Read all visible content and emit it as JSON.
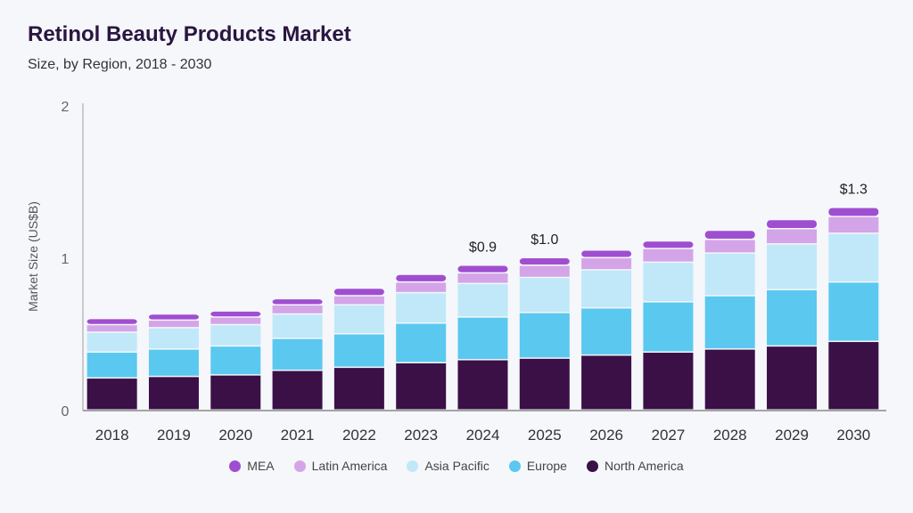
{
  "header": {
    "title": "Retinol Beauty Products Market",
    "subtitle": "Size, by Region, 2018 - 2030"
  },
  "chart_data": {
    "type": "bar",
    "stacked": true,
    "title": "Retinol Beauty Products Market",
    "subtitle": "Size, by Region, 2018 - 2030",
    "xlabel": "",
    "ylabel": "Market Size (US$B)",
    "ylim": [
      0,
      2
    ],
    "yticks": [
      "0",
      "1",
      "2"
    ],
    "grid": false,
    "legend_position": "bottom",
    "categories": [
      "2018",
      "2019",
      "2020",
      "2021",
      "2022",
      "2023",
      "2024",
      "2025",
      "2026",
      "2027",
      "2028",
      "2029",
      "2030"
    ],
    "series": [
      {
        "name": "North America",
        "color": "#3a1047",
        "values": [
          0.21,
          0.22,
          0.23,
          0.26,
          0.28,
          0.31,
          0.33,
          0.34,
          0.36,
          0.38,
          0.4,
          0.42,
          0.45
        ]
      },
      {
        "name": "Europe",
        "color": "#5bc8f0",
        "values": [
          0.17,
          0.18,
          0.19,
          0.21,
          0.22,
          0.26,
          0.28,
          0.3,
          0.31,
          0.33,
          0.35,
          0.37,
          0.39
        ]
      },
      {
        "name": "Asia Pacific",
        "color": "#c0e8f8",
        "values": [
          0.13,
          0.14,
          0.14,
          0.16,
          0.19,
          0.2,
          0.22,
          0.23,
          0.25,
          0.26,
          0.28,
          0.3,
          0.32
        ]
      },
      {
        "name": "Latin America",
        "color": "#d4a4e8",
        "values": [
          0.05,
          0.05,
          0.05,
          0.06,
          0.06,
          0.07,
          0.07,
          0.08,
          0.08,
          0.09,
          0.09,
          0.1,
          0.11
        ]
      },
      {
        "name": "MEA",
        "color": "#a04ed0",
        "values": [
          0.04,
          0.04,
          0.04,
          0.04,
          0.05,
          0.05,
          0.05,
          0.05,
          0.05,
          0.05,
          0.06,
          0.06,
          0.06
        ]
      }
    ],
    "annotations": [
      {
        "category": "2024",
        "text": "$0.9"
      },
      {
        "category": "2025",
        "text": "$1.0"
      },
      {
        "category": "2030",
        "text": "$1.3"
      }
    ]
  },
  "legend": [
    {
      "label": "MEA",
      "color": "#a04ed0"
    },
    {
      "label": "Latin America",
      "color": "#d4a4e8"
    },
    {
      "label": "Asia Pacific",
      "color": "#c0e8f8"
    },
    {
      "label": "Europe",
      "color": "#5bc8f0"
    },
    {
      "label": "North America",
      "color": "#3a1047"
    }
  ]
}
